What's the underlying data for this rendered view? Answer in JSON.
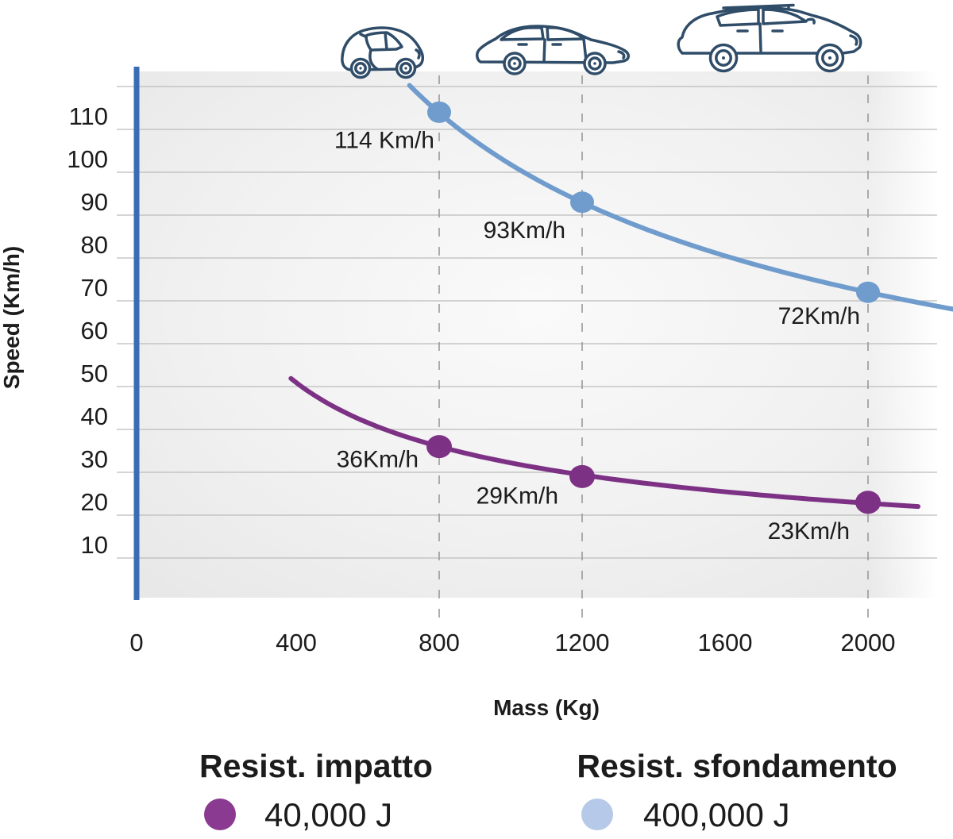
{
  "y_axis": {
    "label": "Speed (Km/h)",
    "ticks": [
      110,
      100,
      90,
      80,
      70,
      60,
      50,
      40,
      30,
      20,
      10
    ]
  },
  "x_axis": {
    "label": "Mass (Kg)",
    "ticks": [
      0,
      400,
      800,
      1200,
      1600,
      2000
    ]
  },
  "chart_data": {
    "type": "line",
    "title": "",
    "xlabel": "Mass (Kg)",
    "ylabel": "Speed (Km/h)",
    "xlim": [
      0,
      2240
    ],
    "ylim": [
      0,
      120
    ],
    "grid": true,
    "grid_step": 10,
    "guides_x": [
      800,
      1200,
      2000
    ],
    "series": [
      {
        "name": "Resist. impatto",
        "energy_joules": 40000,
        "color": "#7d3185",
        "mass_range_kg": [
          385,
          2140
        ],
        "points": [
          {
            "mass_kg": 800,
            "speed_kmh": 36,
            "label": "36Km/h"
          },
          {
            "mass_kg": 1200,
            "speed_kmh": 29,
            "label": "29Km/h"
          },
          {
            "mass_kg": 2000,
            "speed_kmh": 23,
            "label": "23Km/h"
          }
        ]
      },
      {
        "name": "Resist. sfondamento",
        "energy_joules": 400000,
        "color": "#6f9ccd",
        "mass_range_kg": [
          717,
          2238
        ],
        "points": [
          {
            "mass_kg": 800,
            "speed_kmh": 114,
            "label": "114 Km/h"
          },
          {
            "mass_kg": 1200,
            "speed_kmh": 93,
            "label": "93Km/h"
          },
          {
            "mass_kg": 2000,
            "speed_kmh": 72,
            "label": "72Km/h"
          }
        ]
      }
    ]
  },
  "legend": {
    "items": [
      {
        "title": "Resist. impatto",
        "value": "40,000 J",
        "color": "#8a3a90"
      },
      {
        "title": "Resist. sfondamento",
        "value": "400,000 J",
        "color": "#b7c9e8"
      }
    ]
  },
  "cars": [
    {
      "name": "small city car"
    },
    {
      "name": "hatchback"
    },
    {
      "name": "suv"
    }
  ],
  "colors": {
    "axis_blue": "#3a6cb5",
    "axis_blue_light": "#a4bae2",
    "gridline": "#bcbcbc",
    "guide_dash": "#999999",
    "car_outline": "#2f4c68",
    "text": "#1c1c1c"
  }
}
